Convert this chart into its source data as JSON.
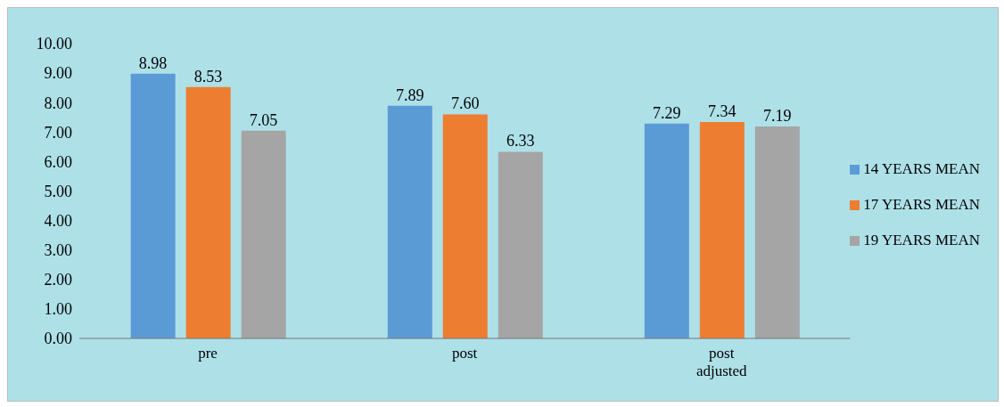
{
  "chart_data": {
    "type": "bar",
    "categories": [
      "pre",
      "post",
      "post adjusted"
    ],
    "series": [
      {
        "name": "14 YEARS MEAN",
        "color": "#5b9bd5",
        "values": [
          8.98,
          7.89,
          7.29
        ]
      },
      {
        "name": "17 YEARS MEAN",
        "color": "#ed7d31",
        "values": [
          8.53,
          7.6,
          7.34
        ]
      },
      {
        "name": "19 YEARS MEAN",
        "color": "#a5a5a5",
        "values": [
          7.05,
          6.33,
          7.19
        ]
      }
    ],
    "ylim": [
      0,
      10
    ],
    "yticks": [
      {
        "value": 0,
        "label": "0.00"
      },
      {
        "value": 1,
        "label": "1.00"
      },
      {
        "value": 2,
        "label": "2.00"
      },
      {
        "value": 3,
        "label": "3.00"
      },
      {
        "value": 4,
        "label": "4.00"
      },
      {
        "value": 5,
        "label": "5.00"
      },
      {
        "value": 6,
        "label": "6.00"
      },
      {
        "value": 7,
        "label": "7.00"
      },
      {
        "value": 8,
        "label": "8.00"
      },
      {
        "value": 9,
        "label": "9.00"
      },
      {
        "value": 10,
        "label": "10.00"
      }
    ],
    "value_labels": [
      [
        "8.98",
        "7.89",
        "7.29"
      ],
      [
        "8.53",
        "7.60",
        "7.34"
      ],
      [
        "7.05",
        "6.33",
        "7.19"
      ]
    ],
    "grid": false,
    "legend": "right"
  }
}
